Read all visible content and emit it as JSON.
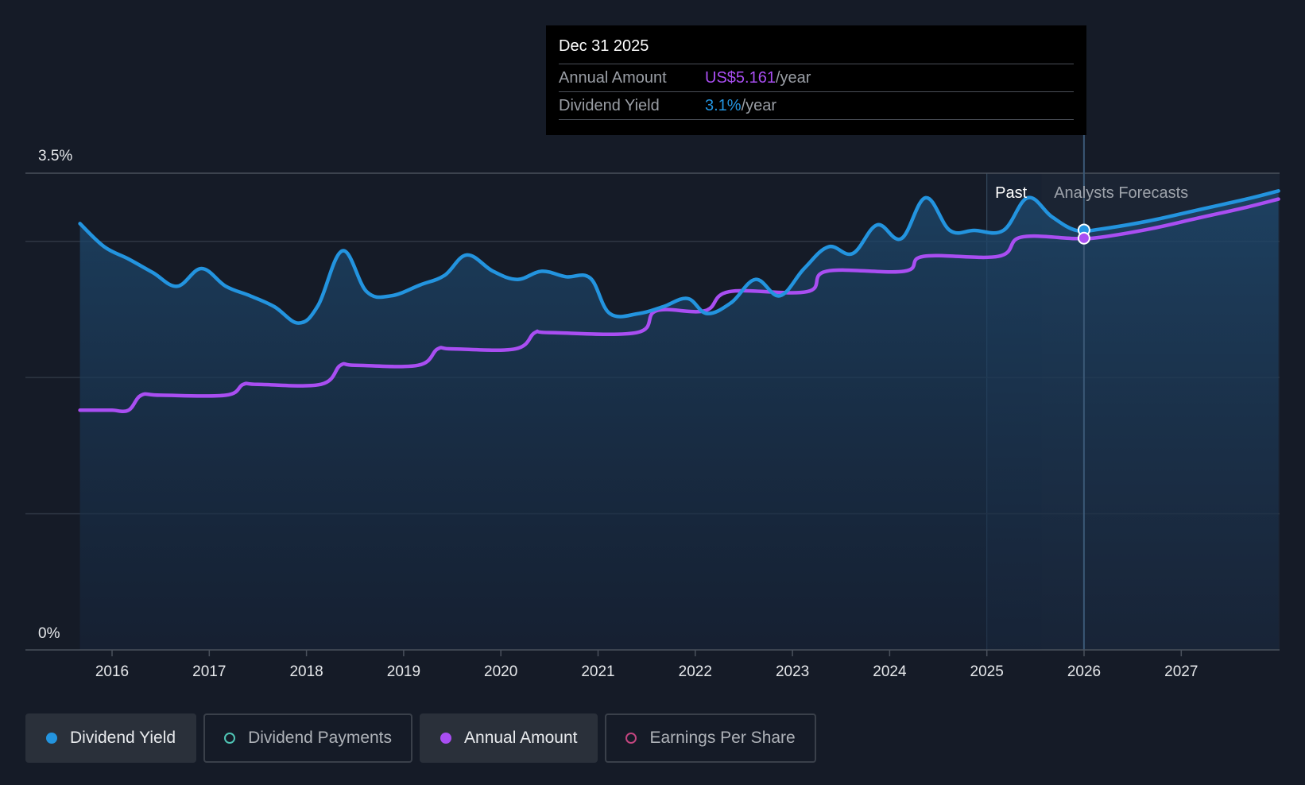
{
  "chart_data": {
    "type": "line",
    "x_ticks": [
      "2016",
      "2017",
      "2018",
      "2019",
      "2020",
      "2021",
      "2022",
      "2023",
      "2024",
      "2025",
      "2026",
      "2027"
    ],
    "y_ticks": [
      "3.5%",
      "0%"
    ],
    "ylim": [
      0,
      3.5
    ],
    "grid": true,
    "regions": {
      "past_label": "Past",
      "forecast_label": "Analysts Forecasts"
    },
    "series": [
      {
        "name": "Dividend Yield",
        "color": "#2394df",
        "points": [
          [
            2015.67,
            3.13
          ],
          [
            2015.92,
            2.96
          ],
          [
            2016.17,
            2.87
          ],
          [
            2016.42,
            2.77
          ],
          [
            2016.67,
            2.67
          ],
          [
            2016.92,
            2.8
          ],
          [
            2017.17,
            2.67
          ],
          [
            2017.42,
            2.6
          ],
          [
            2017.67,
            2.52
          ],
          [
            2017.92,
            2.4
          ],
          [
            2018.12,
            2.53
          ],
          [
            2018.37,
            2.93
          ],
          [
            2018.62,
            2.63
          ],
          [
            2018.87,
            2.6
          ],
          [
            2019.17,
            2.68
          ],
          [
            2019.42,
            2.75
          ],
          [
            2019.65,
            2.9
          ],
          [
            2019.92,
            2.78
          ],
          [
            2020.17,
            2.72
          ],
          [
            2020.42,
            2.78
          ],
          [
            2020.67,
            2.74
          ],
          [
            2020.92,
            2.73
          ],
          [
            2021.12,
            2.47
          ],
          [
            2021.42,
            2.47
          ],
          [
            2021.67,
            2.52
          ],
          [
            2021.92,
            2.58
          ],
          [
            2022.12,
            2.47
          ],
          [
            2022.37,
            2.55
          ],
          [
            2022.62,
            2.72
          ],
          [
            2022.87,
            2.6
          ],
          [
            2023.12,
            2.8
          ],
          [
            2023.37,
            2.96
          ],
          [
            2023.62,
            2.91
          ],
          [
            2023.87,
            3.12
          ],
          [
            2024.12,
            3.02
          ],
          [
            2024.37,
            3.32
          ],
          [
            2024.62,
            3.08
          ],
          [
            2024.87,
            3.08
          ],
          [
            2025.17,
            3.08
          ],
          [
            2025.42,
            3.32
          ],
          [
            2025.67,
            3.18
          ],
          [
            2025.92,
            3.08
          ],
          [
            2026.17,
            3.09
          ],
          [
            2026.67,
            3.15
          ],
          [
            2027.17,
            3.23
          ],
          [
            2027.67,
            3.31
          ],
          [
            2028.0,
            3.37
          ]
        ]
      },
      {
        "name": "Annual Amount",
        "color": "#a94ef2",
        "points": [
          [
            2015.67,
            1.76
          ],
          [
            2015.85,
            1.76
          ],
          [
            2016.0,
            1.76
          ],
          [
            2016.17,
            1.76
          ],
          [
            2016.3,
            1.87
          ],
          [
            2016.5,
            1.87
          ],
          [
            2017.17,
            1.87
          ],
          [
            2017.35,
            1.95
          ],
          [
            2017.5,
            1.95
          ],
          [
            2018.15,
            1.95
          ],
          [
            2018.35,
            2.09
          ],
          [
            2018.5,
            2.09
          ],
          [
            2019.15,
            2.09
          ],
          [
            2019.35,
            2.21
          ],
          [
            2019.5,
            2.21
          ],
          [
            2020.15,
            2.21
          ],
          [
            2020.35,
            2.33
          ],
          [
            2020.5,
            2.33
          ],
          [
            2021.4,
            2.33
          ],
          [
            2021.6,
            2.49
          ],
          [
            2022.1,
            2.49
          ],
          [
            2022.35,
            2.63
          ],
          [
            2023.15,
            2.63
          ],
          [
            2023.35,
            2.78
          ],
          [
            2024.15,
            2.78
          ],
          [
            2024.35,
            2.89
          ],
          [
            2025.12,
            2.89
          ],
          [
            2025.35,
            3.03
          ],
          [
            2025.92,
            3.02
          ],
          [
            2026.17,
            3.03
          ],
          [
            2026.67,
            3.09
          ],
          [
            2027.17,
            3.17
          ],
          [
            2027.67,
            3.25
          ],
          [
            2028.0,
            3.31
          ]
        ]
      }
    ],
    "tooltip": {
      "date": "Dec 31 2025",
      "rows": [
        {
          "label": "Annual Amount",
          "value": "US$5.161",
          "unit": "/year",
          "color": "#a94ef2"
        },
        {
          "label": "Dividend Yield",
          "value": "3.1%",
          "unit": "/year",
          "color": "#2394df"
        }
      ]
    }
  },
  "legend": [
    {
      "label": "Dividend Yield",
      "color": "#2394df",
      "state": "active",
      "filled": true
    },
    {
      "label": "Dividend Payments",
      "color": "#4fc4b4",
      "state": "inactive",
      "filled": false
    },
    {
      "label": "Annual Amount",
      "color": "#a94ef2",
      "state": "active",
      "filled": true
    },
    {
      "label": "Earnings Per Share",
      "color": "#c2457f",
      "state": "inactive",
      "filled": false
    }
  ]
}
